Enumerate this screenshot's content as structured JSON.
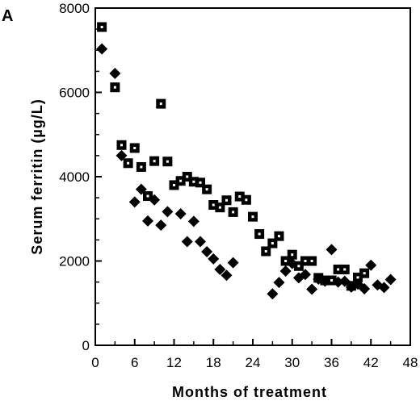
{
  "chart_data": {
    "type": "scatter",
    "panel_label": "A",
    "title": "",
    "xlabel": "Months of treatment",
    "ylabel": "Serum ferritin  (µg/L)",
    "xlim": [
      0,
      48
    ],
    "ylim": [
      0,
      8000
    ],
    "xticks": [
      0,
      6,
      12,
      18,
      24,
      30,
      36,
      42,
      48
    ],
    "yticks": [
      0,
      2000,
      4000,
      6000,
      8000
    ],
    "grid": false,
    "legend": "none",
    "series": [
      {
        "marker": "square-dot",
        "color": "#000000",
        "points": [
          [
            1,
            7550
          ],
          [
            3,
            6120
          ],
          [
            4,
            4750
          ],
          [
            5,
            4320
          ],
          [
            6,
            4680
          ],
          [
            7,
            4230
          ],
          [
            8,
            3540
          ],
          [
            9,
            4370
          ],
          [
            10,
            5730
          ],
          [
            11,
            4360
          ],
          [
            12,
            3800
          ],
          [
            13,
            3900
          ],
          [
            14,
            4000
          ],
          [
            15,
            3880
          ],
          [
            16,
            3860
          ],
          [
            17,
            3700
          ],
          [
            18,
            3330
          ],
          [
            19,
            3270
          ],
          [
            20,
            3440
          ],
          [
            21,
            3160
          ],
          [
            22,
            3530
          ],
          [
            23,
            3450
          ],
          [
            24,
            3050
          ],
          [
            25,
            2640
          ],
          [
            26,
            2230
          ],
          [
            27,
            2420
          ],
          [
            28,
            2590
          ],
          [
            29,
            2000
          ],
          [
            30,
            2150
          ],
          [
            31,
            1880
          ],
          [
            32,
            2000
          ],
          [
            33,
            2000
          ],
          [
            34,
            1600
          ],
          [
            35,
            1540
          ],
          [
            36,
            1540
          ],
          [
            37,
            1800
          ],
          [
            38,
            1800
          ],
          [
            39,
            1410
          ],
          [
            40,
            1610
          ],
          [
            41,
            1710
          ]
        ]
      },
      {
        "marker": "diamond",
        "color": "#000000",
        "points": [
          [
            1,
            7030
          ],
          [
            3,
            6450
          ],
          [
            4,
            4500
          ],
          [
            6,
            3400
          ],
          [
            7,
            3700
          ],
          [
            8,
            2950
          ],
          [
            9,
            3450
          ],
          [
            10,
            2850
          ],
          [
            11,
            3170
          ],
          [
            13,
            3120
          ],
          [
            14,
            2460
          ],
          [
            15,
            2940
          ],
          [
            16,
            2460
          ],
          [
            17,
            2220
          ],
          [
            18,
            2050
          ],
          [
            19,
            1800
          ],
          [
            20,
            1660
          ],
          [
            21,
            1960
          ],
          [
            27,
            1220
          ],
          [
            28,
            1490
          ],
          [
            29,
            1760
          ],
          [
            30,
            1940
          ],
          [
            31,
            1600
          ],
          [
            32,
            1680
          ],
          [
            33,
            1330
          ],
          [
            34,
            1570
          ],
          [
            35,
            1520
          ],
          [
            36,
            2270
          ],
          [
            37,
            1500
          ],
          [
            38,
            1520
          ],
          [
            39,
            1380
          ],
          [
            40,
            1450
          ],
          [
            41,
            1340
          ],
          [
            42,
            1900
          ],
          [
            43,
            1430
          ],
          [
            44,
            1370
          ],
          [
            45,
            1560
          ]
        ]
      }
    ]
  }
}
